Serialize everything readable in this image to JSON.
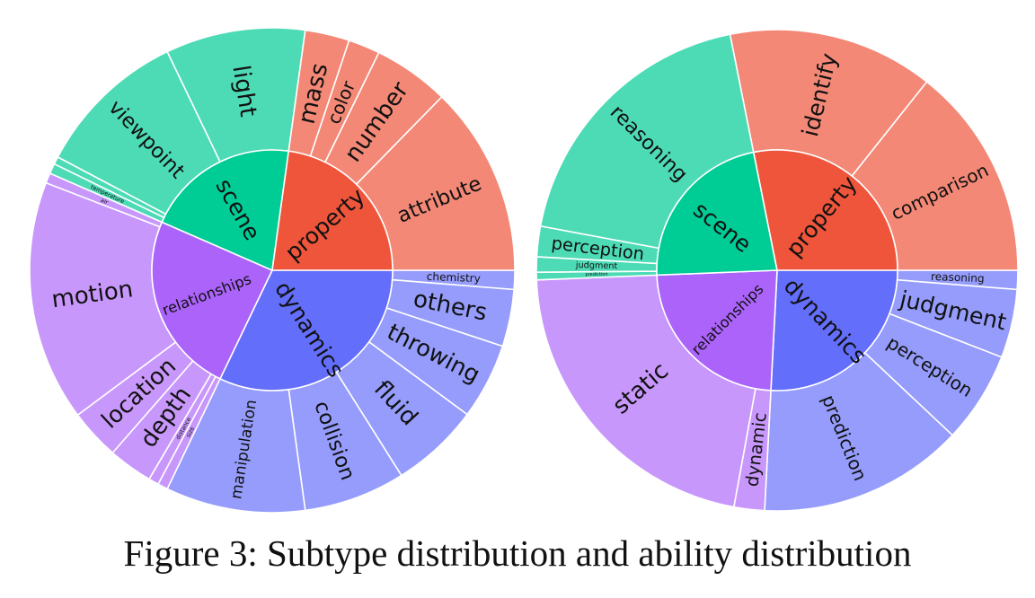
{
  "caption": "Figure 3: Subtype distribution and ability distribution",
  "chart_data": [
    {
      "type": "sunburst",
      "name": "Subtype distribution",
      "segments": [
        {
          "label": "dynamics",
          "color": "#636efa",
          "children_color": "#959cfb",
          "children": [
            {
              "label": "chemistry",
              "value": 1.5
            },
            {
              "label": "others",
              "value": 4.5
            },
            {
              "label": "throwing",
              "value": 6
            },
            {
              "label": "fluid",
              "value": 7
            },
            {
              "label": "collision",
              "value": 8
            },
            {
              "label": "manipulation",
              "value": 11
            }
          ]
        },
        {
          "label": "relationships",
          "color": "#ab63fa",
          "children_color": "#c897fb",
          "children": [
            {
              "label": "size",
              "value": 0.8
            },
            {
              "label": "distance",
              "value": 0.8
            },
            {
              "label": "depth",
              "value": 3.5
            },
            {
              "label": "location",
              "value": 4
            },
            {
              "label": "motion",
              "value": 19
            },
            {
              "label": "air",
              "value": 0.8
            }
          ]
        },
        {
          "label": "scene",
          "color": "#00cc96",
          "children_color": "#4ddbb6",
          "children": [
            {
              "label": "temperature",
              "value": 0.8
            },
            {
              "label": "",
              "value": 0.6
            },
            {
              "label": "viewpoint",
              "value": 12
            },
            {
              "label": "light",
              "value": 11
            }
          ]
        },
        {
          "label": "property",
          "color": "#ef553b",
          "children_color": "#f38876",
          "children": [
            {
              "label": "mass",
              "value": 3.5
            },
            {
              "label": "color",
              "value": 2.5
            },
            {
              "label": "number",
              "value": 6
            },
            {
              "label": "attribute",
              "value": 15
            }
          ]
        }
      ]
    },
    {
      "type": "sunburst",
      "name": "Ability distribution",
      "segments": [
        {
          "label": "dynamics",
          "color": "#636efa",
          "children_color": "#959cfb",
          "children": [
            {
              "label": "reasoning",
              "value": 2.5
            },
            {
              "label": "judgment",
              "value": 9
            },
            {
              "label": "perception",
              "value": 12
            },
            {
              "label": "prediction",
              "value": 27
            }
          ]
        },
        {
          "label": "relationships",
          "color": "#ab63fa",
          "children_color": "#c897fb",
          "children": [
            {
              "label": "dynamic",
              "value": 4
            },
            {
              "label": "static",
              "value": 42
            }
          ]
        },
        {
          "label": "scene",
          "color": "#00cc96",
          "children_color": "#4ddbb6",
          "children": [
            {
              "label": "prediction",
              "value": 1
            },
            {
              "label": "judgment",
              "value": 2
            },
            {
              "label": "perception",
              "value": 4
            },
            {
              "label": "reasoning",
              "value": 37
            }
          ]
        },
        {
          "label": "property",
          "color": "#ef553b",
          "children_color": "#f38876",
          "children": [
            {
              "label": "identify",
              "value": 27
            },
            {
              "label": "comparison",
              "value": 28
            }
          ]
        }
      ]
    }
  ]
}
